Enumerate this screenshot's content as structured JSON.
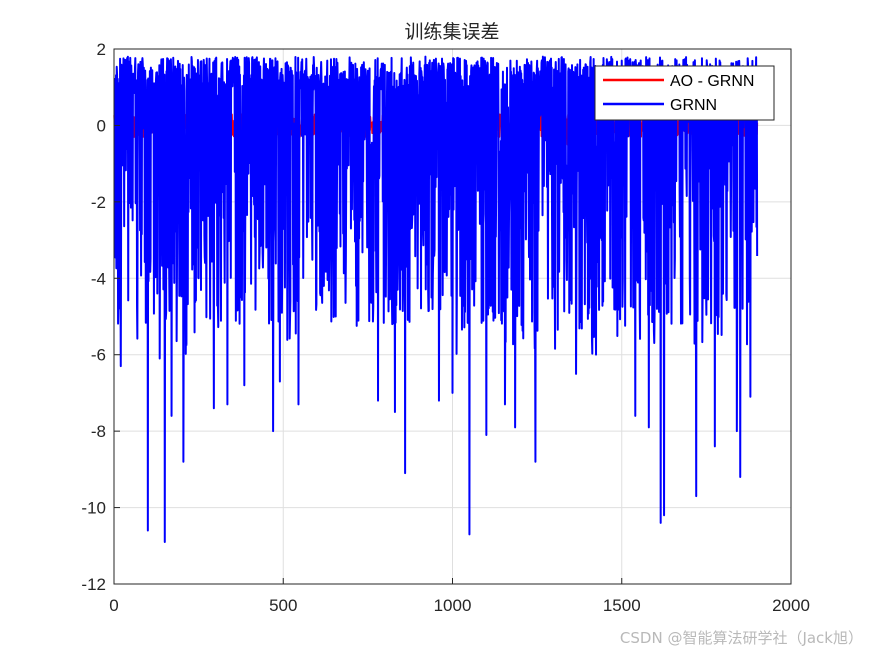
{
  "watermark": "CSDN @智能算法研学社（Jack旭）",
  "chart_data": {
    "type": "line",
    "title": "训练集误差",
    "xlabel": "",
    "ylabel": "",
    "xlim": [
      0,
      2000
    ],
    "ylim": [
      -12,
      2
    ],
    "xticks": [
      0,
      500,
      1000,
      1500,
      2000
    ],
    "yticks": [
      -12,
      -10,
      -8,
      -6,
      -4,
      -2,
      0,
      2
    ],
    "grid": true,
    "legend": {
      "placement": "top-right"
    },
    "n_points": 1900,
    "series": [
      {
        "name": "AO - GRNN",
        "color": "#ff0000",
        "description_values": "errors mostly between -0.3 and 0.3, visible near x≈85 (-0.3) and x≈1340 (-0.5)",
        "x_range": [
          1,
          1900
        ],
        "typical_range": [
          -0.3,
          0.3
        ],
        "spikes": [
          {
            "x": 85,
            "y": -0.3
          },
          {
            "x": 290,
            "y": -0.1
          },
          {
            "x": 600,
            "y": 0.2
          },
          {
            "x": 660,
            "y": 0.3
          },
          {
            "x": 1340,
            "y": -0.5
          }
        ]
      },
      {
        "name": "GRNN",
        "color": "#0000ff",
        "x_range": [
          1,
          1900
        ],
        "typical_range": [
          -3,
          1.6
        ],
        "upper_bound": 1.8,
        "spikes": [
          {
            "x": 20,
            "y": -6.3
          },
          {
            "x": 100,
            "y": -10.6
          },
          {
            "x": 135,
            "y": -6.1
          },
          {
            "x": 150,
            "y": -10.9
          },
          {
            "x": 170,
            "y": -7.6
          },
          {
            "x": 205,
            "y": -8.8
          },
          {
            "x": 295,
            "y": -7.4
          },
          {
            "x": 335,
            "y": -7.3
          },
          {
            "x": 385,
            "y": -6.8
          },
          {
            "x": 470,
            "y": -8.0
          },
          {
            "x": 490,
            "y": -6.7
          },
          {
            "x": 545,
            "y": -7.3
          },
          {
            "x": 655,
            "y": -5.0
          },
          {
            "x": 780,
            "y": -7.2
          },
          {
            "x": 830,
            "y": -7.5
          },
          {
            "x": 860,
            "y": -9.1
          },
          {
            "x": 960,
            "y": -7.2
          },
          {
            "x": 1000,
            "y": -7.0
          },
          {
            "x": 1050,
            "y": -10.7
          },
          {
            "x": 1100,
            "y": -8.1
          },
          {
            "x": 1155,
            "y": -7.3
          },
          {
            "x": 1185,
            "y": -7.9
          },
          {
            "x": 1245,
            "y": -8.8
          },
          {
            "x": 1365,
            "y": -6.5
          },
          {
            "x": 1540,
            "y": -7.6
          },
          {
            "x": 1580,
            "y": -7.9
          },
          {
            "x": 1615,
            "y": -10.4
          },
          {
            "x": 1625,
            "y": -10.2
          },
          {
            "x": 1720,
            "y": -9.7
          },
          {
            "x": 1775,
            "y": -8.4
          },
          {
            "x": 1840,
            "y": -8.0
          },
          {
            "x": 1850,
            "y": -9.2
          },
          {
            "x": 1880,
            "y": -7.1
          }
        ]
      }
    ]
  }
}
